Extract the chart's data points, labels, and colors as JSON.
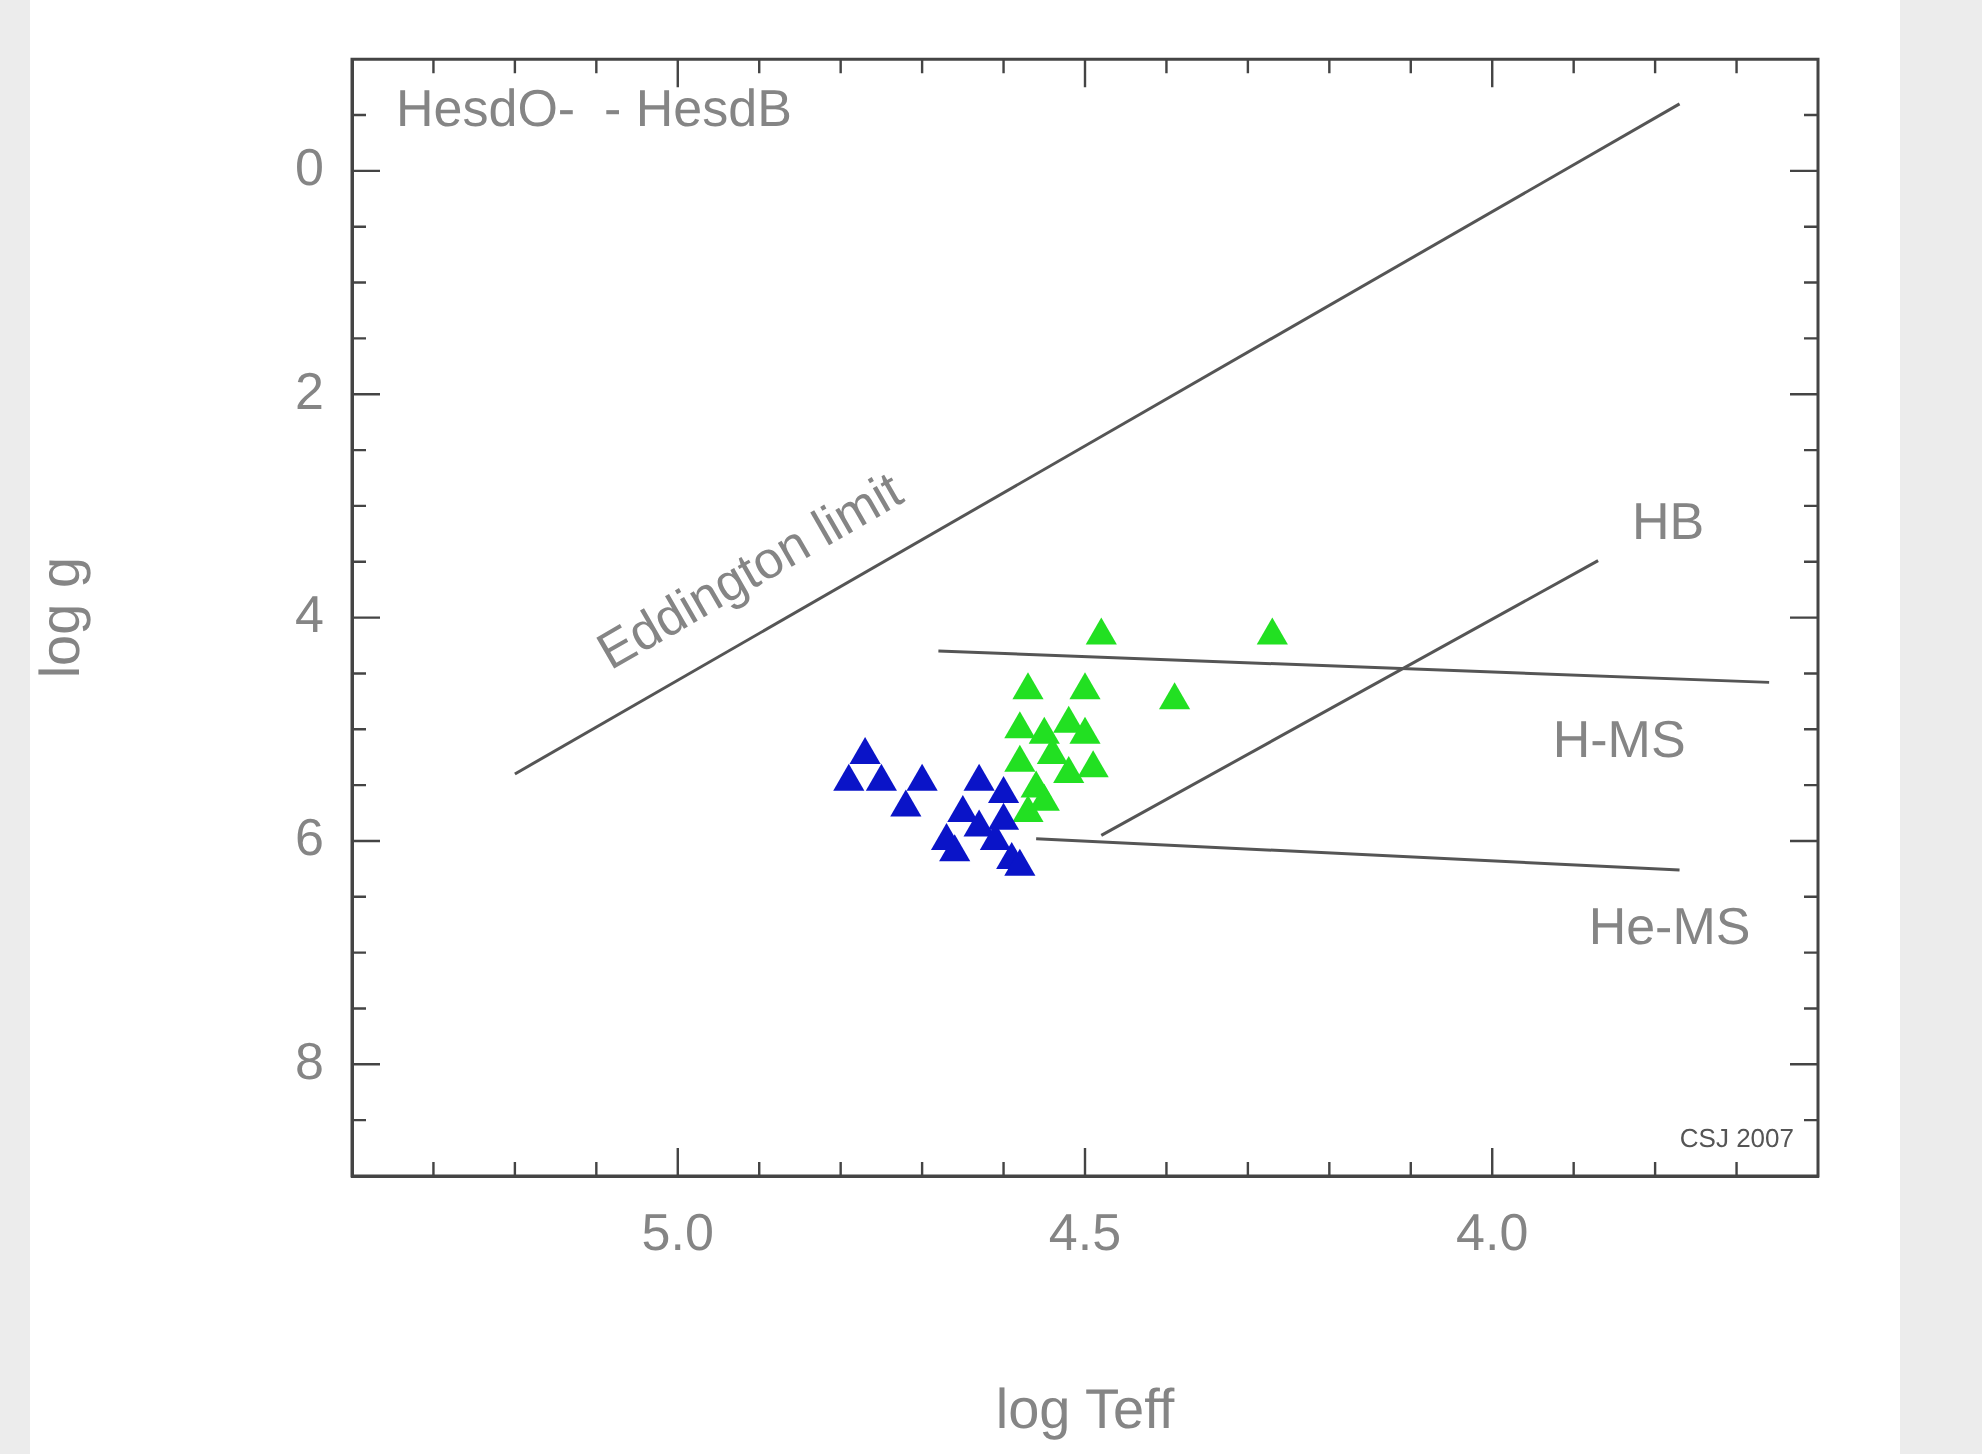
{
  "chart_data": {
    "type": "scatter",
    "xlabel": "log Teff",
    "ylabel": "log g",
    "xlim": [
      5.4,
      3.6
    ],
    "ylim": [
      9,
      -1
    ],
    "xticks": [
      {
        "value": 5.3,
        "label": null
      },
      {
        "value": 5.2,
        "label": null
      },
      {
        "value": 5.1,
        "label": null
      },
      {
        "value": 5,
        "label": "5.0"
      },
      {
        "value": 4.9,
        "label": null
      },
      {
        "value": 4.8,
        "label": null
      },
      {
        "value": 4.7,
        "label": null
      },
      {
        "value": 4.6,
        "label": null
      },
      {
        "value": 4.5,
        "label": "4.5"
      },
      {
        "value": 4.4,
        "label": null
      },
      {
        "value": 4.3,
        "label": null
      },
      {
        "value": 4.2,
        "label": null
      },
      {
        "value": 4.1,
        "label": null
      },
      {
        "value": 4,
        "label": "4.0"
      },
      {
        "value": 3.9,
        "label": null
      },
      {
        "value": 3.8,
        "label": null
      },
      {
        "value": 3.7,
        "label": null
      }
    ],
    "yticks": [
      {
        "value": -0.5,
        "label": null
      },
      0,
      {
        "value": 0.5,
        "label": null
      },
      {
        "value": 1,
        "label": null
      },
      {
        "value": 1.5,
        "label": null
      },
      2,
      {
        "value": 2.5,
        "label": null
      },
      {
        "value": 3,
        "label": null
      },
      {
        "value": 3.5,
        "label": null
      },
      4,
      {
        "value": 4.5,
        "label": null
      },
      {
        "value": 5,
        "label": null
      },
      {
        "value": 5.5,
        "label": null
      },
      6,
      {
        "value": 6.5,
        "label": null
      },
      {
        "value": 7,
        "label": null
      },
      {
        "value": 7.5,
        "label": null
      },
      8,
      {
        "value": 8.5,
        "label": null
      }
    ],
    "grid": false,
    "legend": false,
    "marker": "triangle",
    "series": [
      {
        "color": "#0a14c8",
        "x": [
          4.77,
          4.79,
          4.75,
          4.7,
          4.72,
          4.63,
          4.65,
          4.6,
          4.66,
          4.59,
          4.58,
          4.63,
          4.61,
          4.6,
          4.67
        ],
        "values": [
          5.23,
          5.47,
          5.47,
          5.47,
          5.7,
          5.47,
          5.75,
          5.58,
          6.1,
          6.17,
          6.23,
          5.88,
          6.0,
          5.82,
          6.0
        ]
      },
      {
        "color": "#22e022",
        "x": [
          4.48,
          4.27,
          4.39,
          4.57,
          4.5,
          4.58,
          4.55,
          4.52,
          4.5,
          4.58,
          4.54,
          4.49,
          4.56,
          4.52,
          4.57,
          4.55
        ],
        "values": [
          4.16,
          4.16,
          4.74,
          4.65,
          4.65,
          5.0,
          5.05,
          4.95,
          5.05,
          5.3,
          5.23,
          5.35,
          5.53,
          5.4,
          5.75,
          5.65
        ]
      },
      {
        "type": "line",
        "color": "#555555",
        "marker": "none",
        "x": [
          5.2,
          3.77
        ],
        "values": [
          5.4,
          -0.6
        ]
      },
      {
        "type": "line",
        "color": "#555555",
        "marker": "none",
        "x": [
          4.68,
          3.66
        ],
        "values": [
          4.3,
          4.58
        ]
      },
      {
        "type": "line",
        "color": "#555555",
        "marker": "none",
        "x": [
          4.48,
          3.87
        ],
        "values": [
          5.95,
          3.49
        ]
      },
      {
        "type": "line",
        "color": "#555555",
        "marker": "none",
        "x": [
          4.56,
          3.77
        ],
        "values": [
          5.98,
          6.26
        ]
      }
    ],
    "annotations": [
      "Eddington limit",
      "H-MS",
      "HB",
      "He-MS",
      "HesdO-  - HesdB",
      "CSJ 2007"
    ]
  }
}
